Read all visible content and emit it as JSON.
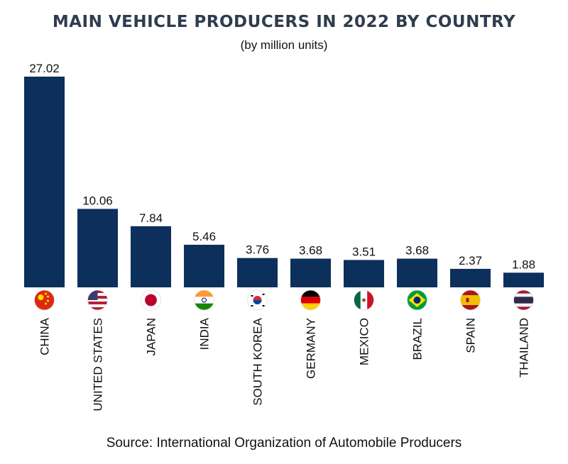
{
  "chart_data": {
    "type": "bar",
    "title": "MAIN VEHICLE PRODUCERS IN 2022 BY COUNTRY",
    "subtitle": "(by million units)",
    "categories": [
      "CHINA",
      "UNITED STATES",
      "JAPAN",
      "INDIA",
      "SOUTH KOREA",
      "GERMANY",
      "MEXICO",
      "BRAZIL",
      "SPAIN",
      "THAILAND"
    ],
    "values": [
      27.02,
      10.06,
      7.84,
      5.46,
      3.76,
      3.68,
      3.51,
      3.68,
      2.37,
      1.88
    ],
    "value_labels": [
      "27.02",
      "10.06",
      "7.84",
      "5.46",
      "3.76",
      "3.68",
      "3.51",
      "3.68",
      "2.37",
      "1.88"
    ],
    "flag_icons": [
      "china-flag-icon",
      "united-states-flag-icon",
      "japan-flag-icon",
      "india-flag-icon",
      "south-korea-flag-icon",
      "germany-flag-icon",
      "mexico-flag-icon",
      "brazil-flag-icon",
      "spain-flag-icon",
      "thailand-flag-icon"
    ],
    "ylim": [
      0,
      27.02
    ],
    "grid": false,
    "bar_color": "#0d2f5c",
    "source": "Source: International Organization of Automobile Producers"
  }
}
